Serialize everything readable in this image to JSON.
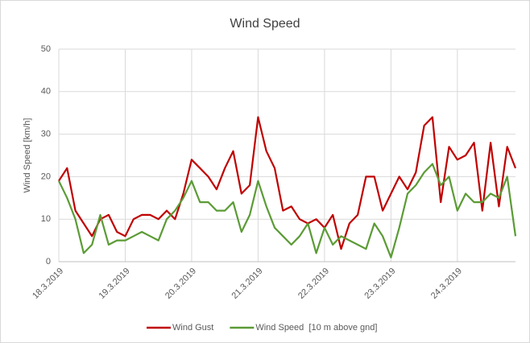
{
  "chart_data": {
    "type": "line",
    "title": "Wind Speed",
    "y_label": "Wind Speed [km/h]",
    "categories": [
      "18.3.2019",
      null,
      null,
      null,
      null,
      null,
      null,
      null,
      "19.3.2019",
      null,
      null,
      null,
      null,
      null,
      null,
      null,
      "20.3.2019",
      null,
      null,
      null,
      null,
      null,
      null,
      null,
      "21.3.2019",
      null,
      null,
      null,
      null,
      null,
      null,
      null,
      "22.3.2019",
      null,
      null,
      null,
      null,
      null,
      null,
      null,
      "23.3.2019",
      null,
      null,
      null,
      null,
      null,
      null,
      null,
      "24.3.2019",
      null,
      null,
      null,
      null,
      null,
      null,
      null
    ],
    "series": [
      {
        "name": "Wind Gust",
        "color": "#c00000",
        "values": [
          19,
          22,
          12,
          9,
          6,
          10,
          11,
          7,
          6,
          10,
          11,
          11,
          10,
          12,
          10,
          16,
          24,
          22,
          20,
          17,
          22,
          26,
          16,
          18,
          34,
          26,
          22,
          12,
          13,
          10,
          9,
          10,
          8,
          11,
          3,
          9,
          11,
          20,
          20,
          12,
          16,
          20,
          17,
          21,
          32,
          34,
          14,
          27,
          24,
          25,
          28,
          12,
          28,
          13,
          27,
          22
        ]
      },
      {
        "name": "Wind Speed  [10 m above gnd]",
        "color": "#5b9b35",
        "values": [
          19,
          15,
          10,
          2,
          4,
          11,
          4,
          5,
          5,
          6,
          7,
          6,
          5,
          10,
          12,
          15,
          19,
          14,
          14,
          12,
          12,
          14,
          7,
          11,
          19,
          13,
          8,
          6,
          4,
          6,
          9,
          2,
          8,
          4,
          6,
          5,
          4,
          3,
          9,
          6,
          1,
          8,
          16,
          18,
          21,
          23,
          18,
          20,
          12,
          16,
          14,
          14,
          16,
          15,
          20,
          6
        ]
      }
    ],
    "ylim": [
      0,
      50
    ],
    "yticks": [
      0,
      10,
      20,
      30,
      40,
      50
    ],
    "grid": true,
    "legend": "bottom"
  }
}
